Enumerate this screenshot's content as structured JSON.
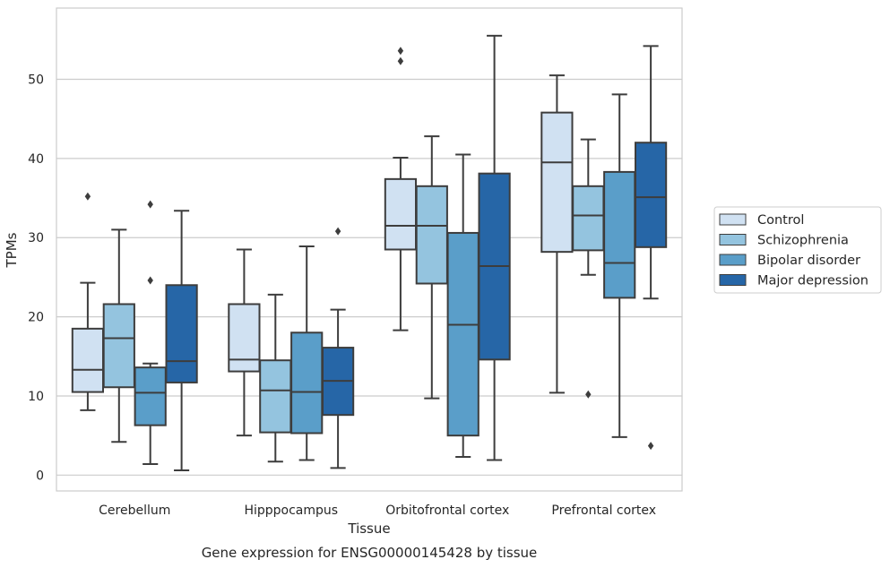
{
  "chart_data": {
    "type": "box",
    "title": "",
    "caption": "Gene expression for ENSG00000145428 by tissue",
    "xlabel": "Tissue",
    "ylabel": "TPMs",
    "ylim": [
      -2,
      59
    ],
    "yticks": [
      0,
      10,
      20,
      30,
      40,
      50
    ],
    "grid": "horizontal",
    "legend_position": "right",
    "categories": [
      "Cerebellum",
      "Hipppocampus",
      "Orbitofrontal cortex",
      "Prefrontal cortex"
    ],
    "series": [
      {
        "name": "Control",
        "color": "#d0e1f2",
        "boxes": [
          {
            "whisker_low": 8.2,
            "q1": 10.5,
            "median": 13.3,
            "q3": 18.5,
            "whisker_high": 24.3,
            "outliers": [
              35.2
            ]
          },
          {
            "whisker_low": 5.0,
            "q1": 13.1,
            "median": 14.6,
            "q3": 21.6,
            "whisker_high": 28.5,
            "outliers": []
          },
          {
            "whisker_low": 18.3,
            "q1": 28.5,
            "median": 31.5,
            "q3": 37.4,
            "whisker_high": 40.1,
            "outliers": [
              53.6,
              52.3
            ]
          },
          {
            "whisker_low": 10.4,
            "q1": 28.2,
            "median": 39.5,
            "q3": 45.8,
            "whisker_high": 50.5,
            "outliers": []
          }
        ]
      },
      {
        "name": "Schizophrenia",
        "color": "#94c4df",
        "boxes": [
          {
            "whisker_low": 4.2,
            "q1": 11.1,
            "median": 17.3,
            "q3": 21.6,
            "whisker_high": 31.0,
            "outliers": []
          },
          {
            "whisker_low": 1.7,
            "q1": 5.4,
            "median": 10.7,
            "q3": 14.5,
            "whisker_high": 22.8,
            "outliers": []
          },
          {
            "whisker_low": 9.7,
            "q1": 24.2,
            "median": 31.5,
            "q3": 36.5,
            "whisker_high": 42.8,
            "outliers": []
          },
          {
            "whisker_low": 25.3,
            "q1": 28.4,
            "median": 32.8,
            "q3": 36.5,
            "whisker_high": 42.4,
            "outliers": [
              10.2
            ]
          }
        ]
      },
      {
        "name": "Bipolar disorder",
        "color": "#5a9ec9",
        "boxes": [
          {
            "whisker_low": 1.4,
            "q1": 6.3,
            "median": 10.4,
            "q3": 13.6,
            "whisker_high": 14.1,
            "outliers": [
              34.2,
              24.6
            ]
          },
          {
            "whisker_low": 1.9,
            "q1": 5.3,
            "median": 10.5,
            "q3": 18.0,
            "whisker_high": 28.9,
            "outliers": []
          },
          {
            "whisker_low": 2.3,
            "q1": 5.0,
            "median": 19.0,
            "q3": 30.6,
            "whisker_high": 40.5,
            "outliers": []
          },
          {
            "whisker_low": 4.8,
            "q1": 22.4,
            "median": 26.8,
            "q3": 38.3,
            "whisker_high": 48.1,
            "outliers": []
          }
        ]
      },
      {
        "name": "Major depression",
        "color": "#2666a7",
        "boxes": [
          {
            "whisker_low": 0.6,
            "q1": 11.7,
            "median": 14.4,
            "q3": 24.0,
            "whisker_high": 33.4,
            "outliers": []
          },
          {
            "whisker_low": 0.9,
            "q1": 7.6,
            "median": 11.9,
            "q3": 16.1,
            "whisker_high": 20.9,
            "outliers": [
              30.8
            ]
          },
          {
            "whisker_low": 1.9,
            "q1": 14.6,
            "median": 26.4,
            "q3": 38.1,
            "whisker_high": 55.5,
            "outliers": []
          },
          {
            "whisker_low": 22.3,
            "q1": 28.8,
            "median": 35.1,
            "q3": 42.0,
            "whisker_high": 54.2,
            "outliers": [
              3.7
            ]
          }
        ]
      }
    ]
  }
}
